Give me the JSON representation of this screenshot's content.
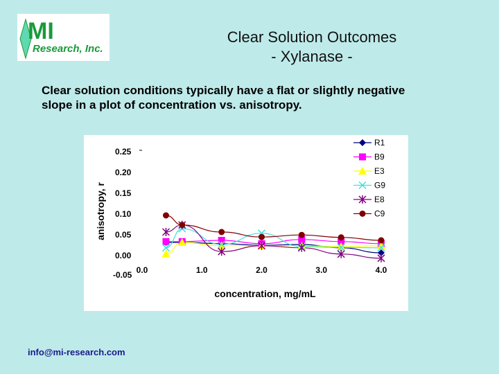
{
  "logo": {
    "main": "MI",
    "sub": "Research, Inc.",
    "brand_color": "#1a9a3a"
  },
  "header": {
    "title_line1": "Clear Solution Outcomes",
    "title_line2": "- Xylanase -"
  },
  "body_text": {
    "line1": "Clear solution conditions typically have a flat or slightly negative",
    "line2": "slope in a plot of concentration vs. anisotropy."
  },
  "footer": {
    "email": "info@mi-research.com"
  },
  "chart_data": {
    "type": "line",
    "title": "",
    "xlabel": "concentration, mg/mL",
    "ylabel": "anisotropy, r",
    "xlim": [
      0.0,
      4.0
    ],
    "ylim": [
      -0.05,
      0.25
    ],
    "x_ticks": [
      "0.0",
      "1.0",
      "2.0",
      "3.0",
      "4.0"
    ],
    "y_ticks": [
      "0.25",
      "0.20",
      "0.15",
      "0.10",
      "0.05",
      "0.00",
      "-0.05"
    ],
    "grid": false,
    "legend_position": "upper right",
    "x": [
      0.4,
      0.67,
      1.33,
      2.0,
      2.67,
      3.33,
      4.0
    ],
    "series": [
      {
        "name": "R1",
        "color": "#000080",
        "marker": "diamond",
        "values": [
          0.03,
          0.03,
          0.027,
          0.023,
          0.025,
          0.017,
          0.005
        ]
      },
      {
        "name": "B9",
        "color": "#ff00ff",
        "marker": "square",
        "values": [
          0.032,
          0.032,
          0.035,
          0.027,
          0.037,
          0.032,
          0.027
        ]
      },
      {
        "name": "E3",
        "color": "#ffff00",
        "marker": "triangle",
        "values": [
          0.003,
          0.03,
          0.022,
          0.022,
          0.022,
          0.02,
          0.022
        ]
      },
      {
        "name": "G9",
        "color": "#40e0e0",
        "marker": "x",
        "values": [
          0.017,
          0.063,
          0.025,
          0.052,
          0.02,
          0.018,
          0.017
        ]
      },
      {
        "name": "E8",
        "color": "#800080",
        "marker": "star",
        "values": [
          0.055,
          0.072,
          0.008,
          0.022,
          0.017,
          0.002,
          -0.008
        ]
      },
      {
        "name": "C9",
        "color": "#800000",
        "marker": "circle",
        "values": [
          0.095,
          0.072,
          0.055,
          0.043,
          0.048,
          0.042,
          0.035
        ]
      }
    ]
  }
}
